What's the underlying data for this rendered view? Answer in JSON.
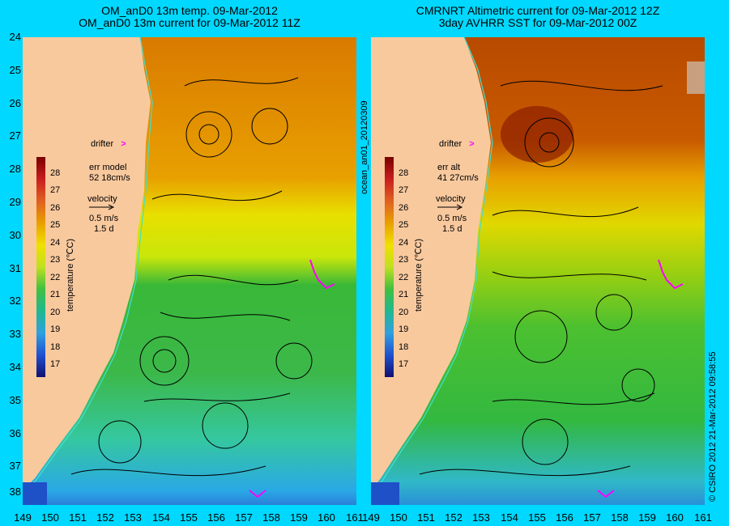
{
  "left_panel": {
    "title_line1": "OM_anD0 13m temp. 09-Mar-2012",
    "title_line2": "OM_anD0 13m current for 09-Mar-2012 11Z",
    "drifter_label": "drifter",
    "err_label": "err model",
    "err_value": "52 18cm/s",
    "velocity_label": "velocity",
    "velocity_scale": "0.5 m/s",
    "velocity_days": "1.5 d",
    "colorbar_title": "temperature (℃C)"
  },
  "right_panel": {
    "title_line1": "CMRNRT Altimetric current for 09-Mar-2012 12Z",
    "title_line2": "3day AVHRR SST for 09-Mar-2012 00Z",
    "drifter_label": "drifter",
    "err_label": "err alt",
    "err_value": "41 27cm/s",
    "velocity_label": "velocity",
    "velocity_scale": "0.5 m/s",
    "velocity_days": "1.5 d",
    "colorbar_title": "temperature (℃C)"
  },
  "middle_label": "ocean_an01_20120309",
  "credit_label": "© CSIRO 2012   21-Mar-2012 09:58:55",
  "lat_ticks": [
    "24",
    "25",
    "26",
    "27",
    "28",
    "29",
    "30",
    "31",
    "32",
    "33",
    "34",
    "35",
    "36",
    "37",
    "38"
  ],
  "lon_ticks": [
    "149",
    "150",
    "151",
    "152",
    "153",
    "154",
    "155",
    "156",
    "157",
    "158",
    "159",
    "160",
    "161"
  ],
  "colorbar_ticks": [
    "28",
    "27",
    "26",
    "25",
    "24",
    "23",
    "22",
    "21",
    "20",
    "19",
    "18",
    "17"
  ],
  "colors": {
    "background": "#00d8ff",
    "land": "#f9c99e",
    "drifter": "#ff00ff",
    "coast_line": "#40e0d0"
  }
}
